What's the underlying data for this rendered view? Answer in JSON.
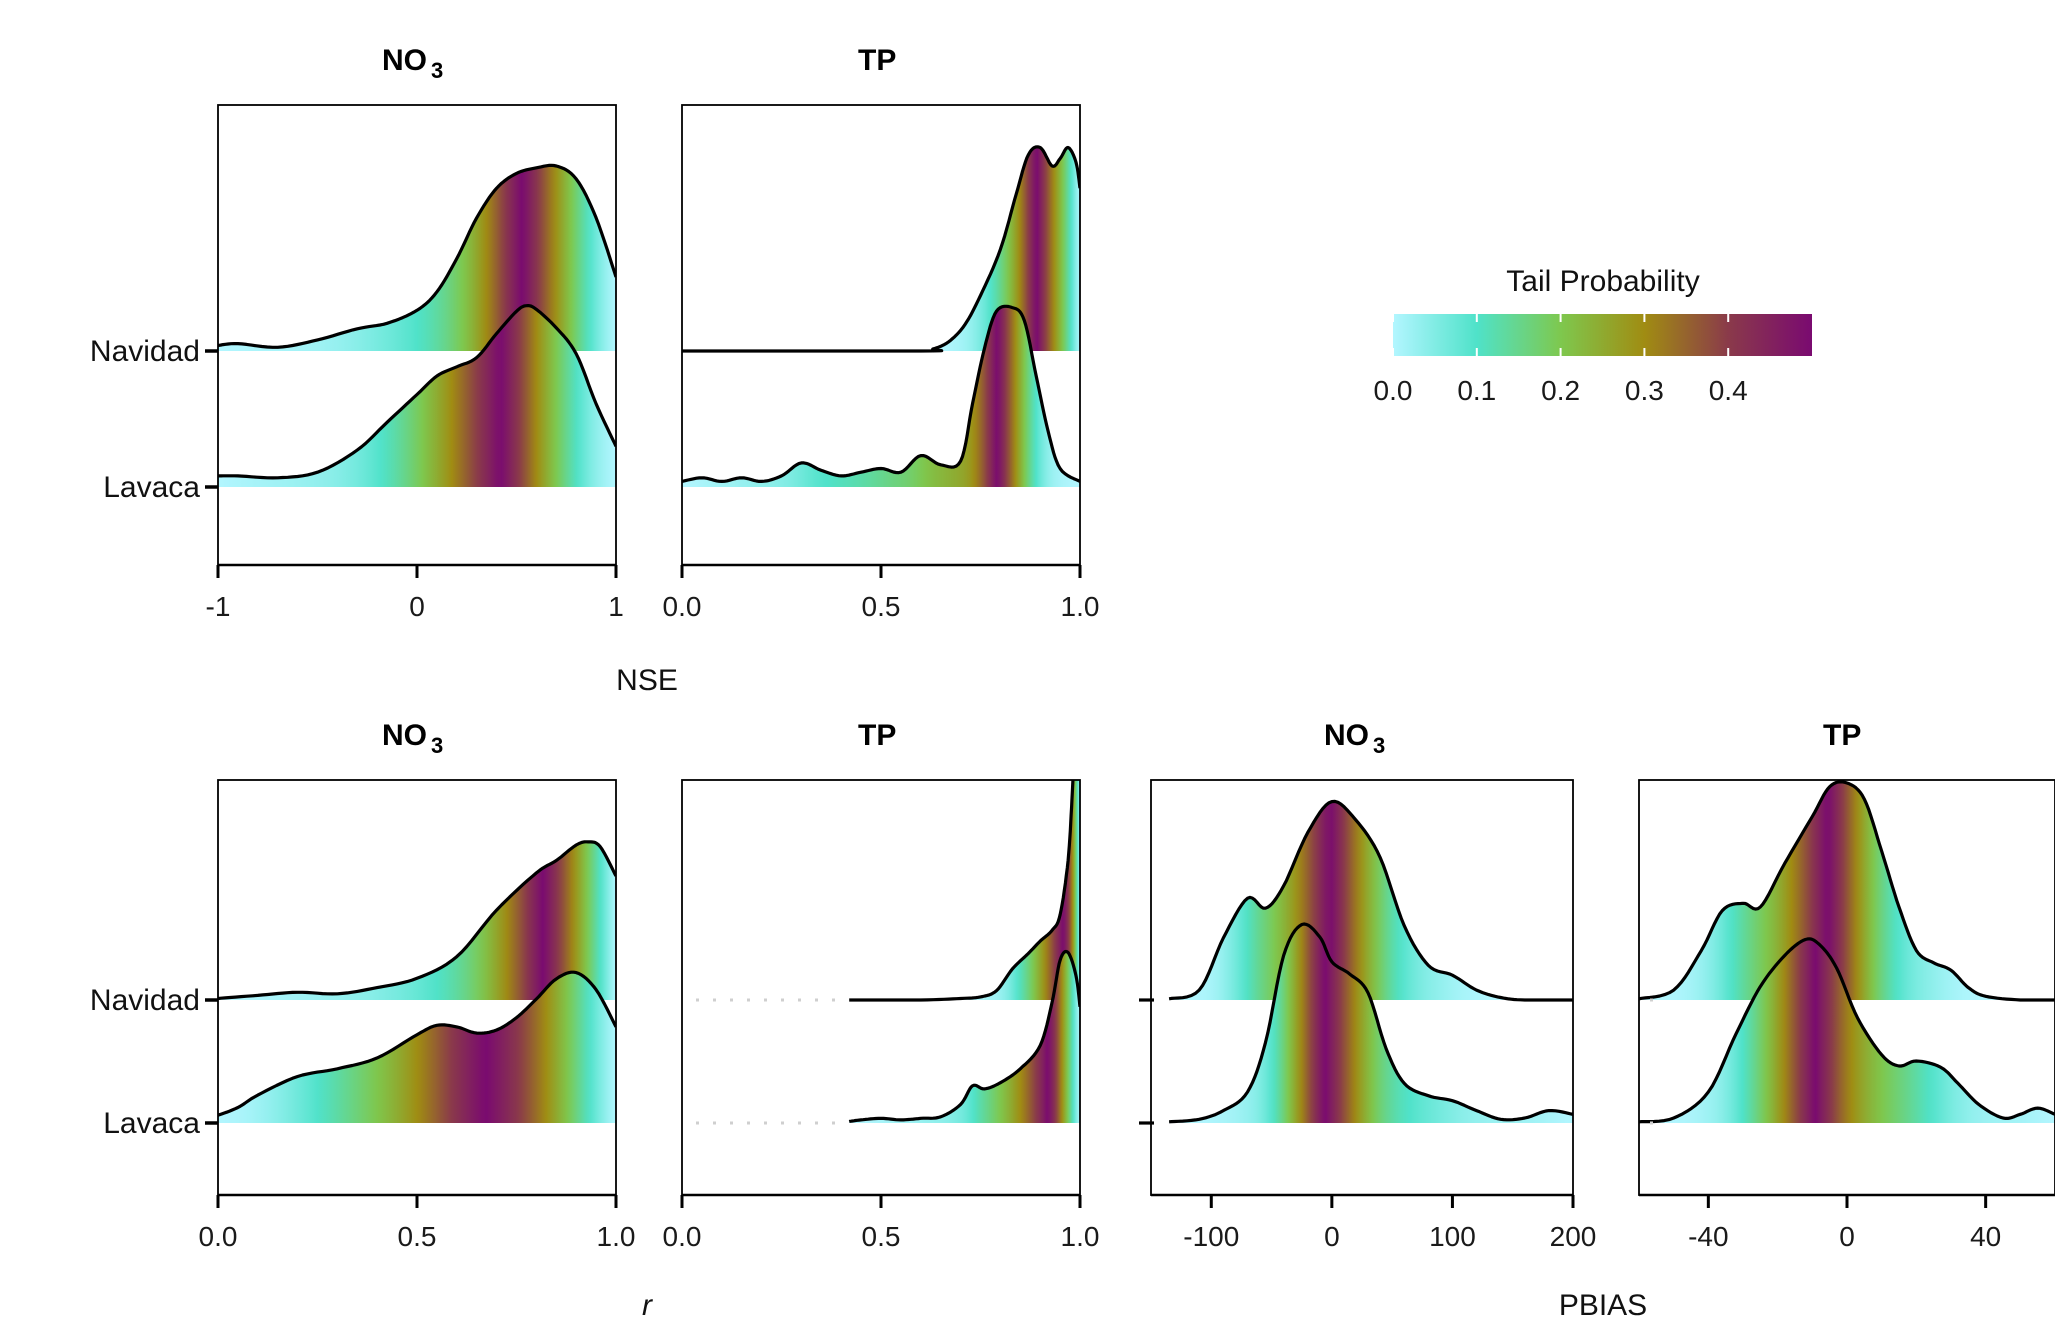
{
  "legend": {
    "title": "Tail Probability",
    "ticks": [
      "0.0",
      "0.1",
      "0.2",
      "0.3",
      "0.4"
    ],
    "tick_values": [
      0,
      0.1,
      0.2,
      0.3,
      0.4
    ],
    "max": 0.5,
    "colors": [
      "#b3f6ff",
      "#4fe2c9",
      "#7ec84e",
      "#a08c12",
      "#8a3a4a",
      "#7a0a70"
    ]
  },
  "x_labels": {
    "nse": "NSE",
    "r": "r",
    "pbias": "PBIAS"
  },
  "chart_data": [
    {
      "type": "area",
      "id": "nse_no3",
      "title": "NO",
      "title_sub": "3",
      "categories": [
        "Navidad",
        "Lavaca"
      ],
      "xlim": [
        -1,
        1
      ],
      "xticks": [
        {
          "v": -1,
          "label": "-1"
        },
        {
          "v": 0,
          "label": "0"
        },
        {
          "v": 1,
          "label": "1"
        }
      ],
      "series": [
        {
          "name": "Navidad",
          "x": [
            -1,
            -0.9,
            -0.7,
            -0.5,
            -0.3,
            -0.15,
            0,
            0.1,
            0.2,
            0.3,
            0.4,
            0.5,
            0.6,
            0.7,
            0.8,
            0.9,
            1
          ],
          "y": [
            0.03,
            0.04,
            0.02,
            0.06,
            0.12,
            0.15,
            0.22,
            0.32,
            0.5,
            0.72,
            0.88,
            0.96,
            0.99,
            1.0,
            0.93,
            0.72,
            0.4
          ]
        },
        {
          "name": "Lavaca",
          "x": [
            -1,
            -0.9,
            -0.7,
            -0.5,
            -0.3,
            -0.15,
            0,
            0.1,
            0.2,
            0.3,
            0.4,
            0.5,
            0.55,
            0.6,
            0.7,
            0.8,
            0.9,
            1
          ],
          "y": [
            0.06,
            0.06,
            0.05,
            0.08,
            0.2,
            0.35,
            0.5,
            0.6,
            0.65,
            0.7,
            0.83,
            0.95,
            0.98,
            0.96,
            0.86,
            0.72,
            0.45,
            0.22
          ]
        }
      ]
    },
    {
      "type": "area",
      "id": "nse_tp",
      "title": "TP",
      "title_sub": "",
      "categories": [
        "Navidad",
        "Lavaca"
      ],
      "xlim": [
        0,
        1
      ],
      "xticks": [
        {
          "v": 0,
          "label": "0.0"
        },
        {
          "v": 0.5,
          "label": "0.5"
        },
        {
          "v": 1,
          "label": "1.0"
        }
      ],
      "series": [
        {
          "name": "Navidad",
          "x": [
            0,
            0.6,
            0.63,
            0.67,
            0.71,
            0.75,
            0.8,
            0.84,
            0.87,
            0.9,
            0.93,
            0.95,
            0.97,
            0.99,
            1
          ],
          "y": [
            0,
            0,
            0.01,
            0.05,
            0.14,
            0.3,
            0.55,
            0.85,
            1.06,
            1.1,
            1.0,
            1.04,
            1.1,
            1.02,
            0.88
          ]
        },
        {
          "name": "Lavaca",
          "x": [
            0,
            0.05,
            0.1,
            0.15,
            0.2,
            0.25,
            0.3,
            0.35,
            0.4,
            0.45,
            0.5,
            0.55,
            0.6,
            0.65,
            0.7,
            0.73,
            0.76,
            0.79,
            0.83,
            0.86,
            0.89,
            0.92,
            0.95,
            1
          ],
          "y": [
            0.03,
            0.05,
            0.03,
            0.05,
            0.03,
            0.06,
            0.13,
            0.09,
            0.06,
            0.08,
            0.1,
            0.08,
            0.17,
            0.12,
            0.14,
            0.45,
            0.75,
            0.95,
            0.97,
            0.9,
            0.6,
            0.3,
            0.1,
            0.03
          ]
        }
      ]
    },
    {
      "type": "area",
      "id": "r_no3",
      "title": "NO",
      "title_sub": "3",
      "categories": [
        "Navidad",
        "Lavaca"
      ],
      "xlim": [
        0,
        1
      ],
      "xticks": [
        {
          "v": 0,
          "label": "0.0"
        },
        {
          "v": 0.5,
          "label": "0.5"
        },
        {
          "v": 1,
          "label": "1.0"
        }
      ],
      "series": [
        {
          "name": "Navidad",
          "x": [
            0,
            0.1,
            0.2,
            0.3,
            0.4,
            0.5,
            0.6,
            0.7,
            0.8,
            0.85,
            0.9,
            0.93,
            0.96,
            1
          ],
          "y": [
            0.01,
            0.03,
            0.05,
            0.04,
            0.08,
            0.14,
            0.28,
            0.58,
            0.82,
            0.9,
            1.0,
            1.02,
            0.99,
            0.8
          ]
        },
        {
          "name": "Lavaca",
          "x": [
            0,
            0.05,
            0.1,
            0.2,
            0.3,
            0.4,
            0.5,
            0.55,
            0.6,
            0.65,
            0.7,
            0.75,
            0.8,
            0.85,
            0.9,
            0.95,
            1
          ],
          "y": [
            0.05,
            0.1,
            0.18,
            0.3,
            0.35,
            0.42,
            0.57,
            0.63,
            0.62,
            0.58,
            0.6,
            0.68,
            0.8,
            0.93,
            0.97,
            0.86,
            0.62
          ]
        }
      ]
    },
    {
      "type": "area",
      "id": "r_tp",
      "title": "TP",
      "title_sub": "",
      "categories": [
        "Navidad",
        "Lavaca"
      ],
      "xlim": [
        0,
        1
      ],
      "xticks": [
        {
          "v": 0,
          "label": "0.0"
        },
        {
          "v": 0.5,
          "label": "0.5"
        },
        {
          "v": 1,
          "label": "1.0"
        }
      ],
      "series": [
        {
          "name": "Navidad",
          "x": [
            0.42,
            0.6,
            0.7,
            0.75,
            0.79,
            0.83,
            0.87,
            0.9,
            0.93,
            0.95,
            0.97,
            0.98,
            0.99,
            1
          ],
          "y": [
            0,
            0,
            0.01,
            0.02,
            0.06,
            0.2,
            0.3,
            0.38,
            0.45,
            0.55,
            0.9,
            1.3,
            1.8,
            1.78
          ]
        },
        {
          "name": "Lavaca",
          "x": [
            0.42,
            0.45,
            0.5,
            0.55,
            0.6,
            0.65,
            0.7,
            0.73,
            0.76,
            0.8,
            0.85,
            0.9,
            0.93,
            0.95,
            0.97,
            0.99,
            1
          ],
          "y": [
            0.01,
            0.02,
            0.03,
            0.02,
            0.03,
            0.04,
            0.12,
            0.24,
            0.22,
            0.26,
            0.35,
            0.5,
            0.78,
            1.05,
            1.1,
            0.95,
            0.75
          ]
        }
      ]
    },
    {
      "type": "area",
      "id": "pbias_no3",
      "title": "NO",
      "title_sub": "3",
      "categories": [
        "Navidad",
        "Lavaca"
      ],
      "xlim": [
        -150,
        200
      ],
      "xticks": [
        {
          "v": -100,
          "label": "-100"
        },
        {
          "v": 0,
          "label": "0"
        },
        {
          "v": 100,
          "label": "100"
        },
        {
          "v": 200,
          "label": "200"
        }
      ],
      "series": [
        {
          "name": "Navidad",
          "x": [
            -135,
            -110,
            -90,
            -70,
            -55,
            -40,
            -20,
            0,
            20,
            40,
            60,
            80,
            100,
            120,
            140,
            160,
            200
          ],
          "y": [
            0.01,
            0.08,
            0.5,
            0.82,
            0.74,
            0.92,
            1.35,
            1.6,
            1.45,
            1.15,
            0.6,
            0.28,
            0.2,
            0.08,
            0.02,
            0,
            0
          ]
        },
        {
          "name": "Lavaca",
          "x": [
            -135,
            -110,
            -90,
            -70,
            -55,
            -40,
            -25,
            -10,
            0,
            15,
            30,
            45,
            60,
            80,
            100,
            120,
            140,
            160,
            180,
            200
          ],
          "y": [
            0.01,
            0.03,
            0.1,
            0.25,
            0.65,
            1.35,
            1.6,
            1.5,
            1.3,
            1.2,
            1.05,
            0.6,
            0.32,
            0.22,
            0.18,
            0.1,
            0.03,
            0.04,
            0.1,
            0.07
          ]
        }
      ]
    },
    {
      "type": "area",
      "id": "pbias_tp",
      "title": "TP",
      "title_sub": "",
      "categories": [
        "Navidad",
        "Lavaca"
      ],
      "xlim": [
        -60,
        60
      ],
      "xticks": [
        {
          "v": -40,
          "label": "-40"
        },
        {
          "v": 0,
          "label": "0"
        },
        {
          "v": 40,
          "label": "40"
        }
      ],
      "series": [
        {
          "name": "Navidad",
          "x": [
            -60,
            -50,
            -42,
            -36,
            -30,
            -25,
            -18,
            -10,
            -5,
            0,
            5,
            10,
            15,
            20,
            25,
            30,
            35,
            40,
            50,
            60
          ],
          "y": [
            0.01,
            0.08,
            0.4,
            0.72,
            0.78,
            0.75,
            1.1,
            1.48,
            1.72,
            1.75,
            1.62,
            1.2,
            0.75,
            0.4,
            0.3,
            0.24,
            0.1,
            0.03,
            0,
            0
          ]
        },
        {
          "name": "Lavaca",
          "x": [
            -60,
            -50,
            -40,
            -32,
            -25,
            -18,
            -12,
            -8,
            -3,
            3,
            10,
            15,
            20,
            27,
            32,
            38,
            45,
            50,
            55,
            60
          ],
          "y": [
            0.01,
            0.04,
            0.25,
            0.72,
            1.1,
            1.35,
            1.48,
            1.44,
            1.25,
            0.85,
            0.55,
            0.46,
            0.5,
            0.45,
            0.32,
            0.15,
            0.04,
            0.07,
            0.12,
            0.07
          ]
        }
      ]
    }
  ]
}
